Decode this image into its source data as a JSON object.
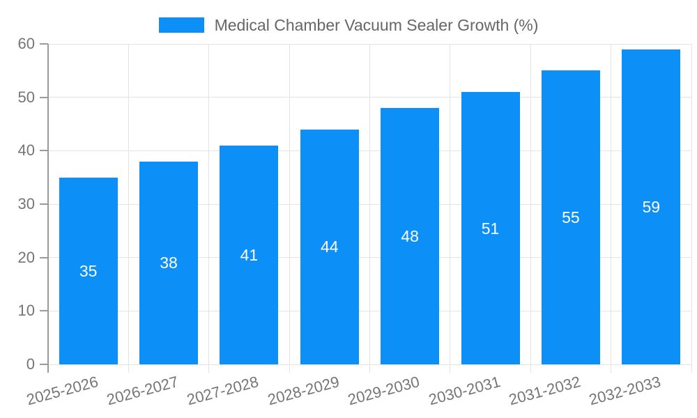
{
  "chart_data": {
    "type": "bar",
    "title": "Medical Chamber Vacuum Sealer Growth (%)",
    "categories": [
      "2025-2026",
      "2026-2027",
      "2027-2028",
      "2028-2029",
      "2029-2030",
      "2030-2031",
      "2031-2032",
      "2032-2033"
    ],
    "values": [
      35,
      38,
      41,
      44,
      48,
      51,
      55,
      59
    ],
    "xlabel": "",
    "ylabel": "",
    "ylim": [
      0,
      60
    ],
    "yticks": [
      0,
      10,
      20,
      30,
      40,
      50,
      60
    ],
    "grid": true,
    "legend_position": "top-center",
    "bar_value_labels_inside": true,
    "x_tick_rotation_deg": -15,
    "colors": {
      "bar": "#0D8FF8",
      "grid": "#E3E3E3",
      "axis": "#9A9A9A",
      "tick_label": "#757575",
      "legend_text": "#666666",
      "bar_label": "#FFFFFF",
      "background": "#FFFFFF"
    }
  }
}
